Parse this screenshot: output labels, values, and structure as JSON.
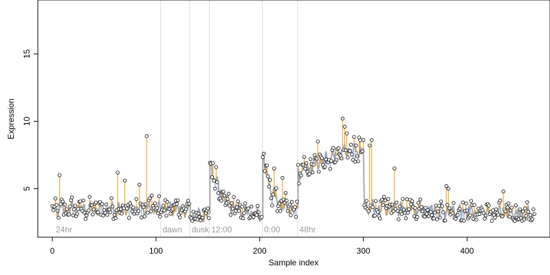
{
  "chart_data": {
    "type": "scatter",
    "title": "",
    "xlabel": "Sample index",
    "ylabel": "Expression",
    "xlim": [
      -14,
      480
    ],
    "ylim": [
      1.4,
      19.0
    ],
    "x_ticks": [
      0,
      100,
      200,
      300,
      400
    ],
    "y_ticks": [
      5,
      10,
      15
    ],
    "grid": false,
    "legend": "none",
    "colors": {
      "points_fill": "#ffffff",
      "points_stroke": "#000000",
      "fit_line": "#a8a8a8",
      "residual_above": "#f0a020",
      "residual_below": "#7fa0d8",
      "region_divider": "#dddddd",
      "region_label": "#9a9a9a"
    },
    "regions": [
      {
        "label": "24hr",
        "start": 2
      },
      {
        "label": "dawn",
        "start": 105
      },
      {
        "label": "dusk",
        "start": 133
      },
      {
        "label": "12:00",
        "start": 152
      },
      {
        "label": "0:00",
        "start": 203
      },
      {
        "label": "48hr",
        "start": 237
      }
    ],
    "dividers": [
      105,
      133,
      152,
      203,
      237
    ],
    "segments": [
      {
        "from": 0,
        "to": 104,
        "base": 3.5,
        "level": 3.5
      },
      {
        "from": 105,
        "to": 132,
        "base": 3.6,
        "level": 3.4
      },
      {
        "from": 133,
        "to": 151,
        "base": 3.0,
        "level": 3.0
      },
      {
        "from": 152,
        "to": 202,
        "base": 7.0,
        "level": 3.0
      },
      {
        "from": 203,
        "to": 236,
        "base": 7.5,
        "level": 3.3
      },
      {
        "from": 237,
        "to": 300,
        "base": 6.2,
        "level": 7.8
      },
      {
        "from": 301,
        "to": 465,
        "base": 3.6,
        "level": 3.1
      }
    ],
    "highlights": [
      {
        "x": 7,
        "y": 6.0
      },
      {
        "x": 63,
        "y": 6.2
      },
      {
        "x": 70,
        "y": 5.6
      },
      {
        "x": 84,
        "y": 5.3
      },
      {
        "x": 91,
        "y": 8.9
      },
      {
        "x": 96,
        "y": 4.5
      },
      {
        "x": 155,
        "y": 6.9
      },
      {
        "x": 158,
        "y": 6.6
      },
      {
        "x": 204,
        "y": 7.6
      },
      {
        "x": 214,
        "y": 6.5
      },
      {
        "x": 222,
        "y": 5.8
      },
      {
        "x": 256,
        "y": 8.5
      },
      {
        "x": 276,
        "y": 8.0
      },
      {
        "x": 280,
        "y": 10.2
      },
      {
        "x": 282,
        "y": 9.6
      },
      {
        "x": 284,
        "y": 9.1
      },
      {
        "x": 292,
        "y": 7.0
      },
      {
        "x": 296,
        "y": 8.8
      },
      {
        "x": 306,
        "y": 8.2
      },
      {
        "x": 308,
        "y": 8.6
      },
      {
        "x": 330,
        "y": 6.5
      },
      {
        "x": 355,
        "y": 4.2
      },
      {
        "x": 380,
        "y": 5.2
      },
      {
        "x": 382,
        "y": 5.0
      },
      {
        "x": 435,
        "y": 4.8
      }
    ],
    "n_samples": 466
  }
}
